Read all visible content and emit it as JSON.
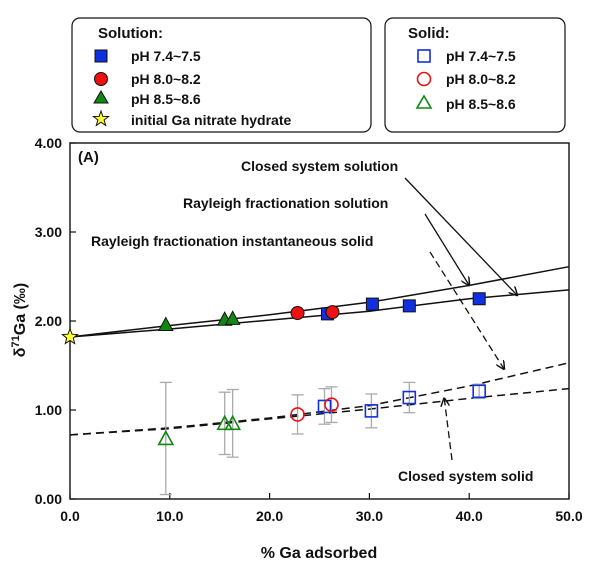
{
  "chart_data": {
    "type": "scatter",
    "panel_label": "(A)",
    "xlabel": "% Ga adsorbed",
    "ylabel_main": "δ",
    "ylabel_sup": "71",
    "ylabel_rest": "Ga (‰)",
    "xlim": [
      0,
      50
    ],
    "ylim": [
      0,
      4
    ],
    "xticks": [
      "0.0",
      "10.0",
      "20.0",
      "30.0",
      "40.0",
      "50.0"
    ],
    "yticks": [
      "0.00",
      "1.00",
      "2.00",
      "3.00",
      "4.00"
    ],
    "legend_solution": {
      "title": "Solution:",
      "entries": [
        "pH 7.4~7.5",
        "pH 8.0~8.2",
        "pH 8.5~8.6",
        "initial Ga nitrate hydrate"
      ]
    },
    "legend_solid": {
      "title": "Solid:",
      "entries": [
        "pH 7.4~7.5",
        "pH 8.0~8.2",
        "pH 8.5~8.6"
      ]
    },
    "colors": {
      "blue": "#1030e0",
      "red": "#ee1111",
      "green": "#118811",
      "star": "#ffff33",
      "errorbar": "#aaaaaa"
    },
    "series": [
      {
        "group": "solution",
        "marker": "square",
        "points": [
          [
            25.8,
            2.08
          ],
          [
            30.3,
            2.19
          ],
          [
            34.0,
            2.17
          ],
          [
            41.0,
            2.25
          ]
        ]
      },
      {
        "group": "solution",
        "marker": "circle",
        "points": [
          [
            22.8,
            2.09
          ],
          [
            26.3,
            2.1
          ]
        ]
      },
      {
        "group": "solution",
        "marker": "triangle",
        "points": [
          [
            9.6,
            1.96
          ],
          [
            15.5,
            2.02
          ],
          [
            16.3,
            2.03
          ]
        ]
      },
      {
        "group": "initial",
        "marker": "star",
        "points": [
          [
            0.0,
            1.82
          ]
        ]
      },
      {
        "group": "solid",
        "marker": "square",
        "points": [
          [
            25.5,
            1.04
          ],
          [
            30.2,
            0.99
          ],
          [
            34.0,
            1.14
          ],
          [
            41.0,
            1.21
          ]
        ],
        "errors": [
          0.2,
          0.19,
          0.17,
          0.08
        ]
      },
      {
        "group": "solid",
        "marker": "circle",
        "points": [
          [
            22.8,
            0.95
          ],
          [
            26.2,
            1.06
          ]
        ],
        "errors": [
          0.22,
          0.2
        ]
      },
      {
        "group": "solid",
        "marker": "triangle",
        "points": [
          [
            9.6,
            0.68
          ],
          [
            15.5,
            0.85
          ],
          [
            16.3,
            0.85
          ]
        ],
        "errors": [
          0.63,
          0.35,
          0.38
        ]
      }
    ],
    "curves": [
      {
        "name": "Closed system solution",
        "style": "solid",
        "x": [
          0,
          10,
          20,
          30,
          40,
          50
        ],
        "y": [
          1.82,
          1.91,
          2.01,
          2.11,
          2.25,
          2.35
        ]
      },
      {
        "name": "Rayleigh fractionation solution",
        "style": "solid",
        "x": [
          0,
          10,
          20,
          30,
          40,
          50
        ],
        "y": [
          1.82,
          1.95,
          2.07,
          2.21,
          2.4,
          2.61
        ]
      },
      {
        "name": "Rayleigh fractionation instantaneous solid",
        "style": "dashed",
        "x": [
          0,
          10,
          20,
          30,
          40,
          50
        ],
        "y": [
          0.72,
          0.8,
          0.91,
          1.05,
          1.27,
          1.53
        ]
      },
      {
        "name": "Closed system solid",
        "style": "dashed",
        "x": [
          0,
          10,
          20,
          30,
          40,
          50
        ],
        "y": [
          0.72,
          0.79,
          0.9,
          1.01,
          1.13,
          1.24
        ]
      }
    ],
    "annotations": [
      {
        "text": "Closed system solution",
        "arrow_to": [
          44.8,
          2.29
        ]
      },
      {
        "text": "Rayleigh fractionation solution",
        "arrow_to": [
          40.0,
          2.4
        ]
      },
      {
        "text": "Rayleigh fractionation instantaneous solid",
        "arrow_to": [
          43.5,
          1.46
        ]
      },
      {
        "text": "Closed system solid",
        "arrow_to": [
          37.5,
          1.13
        ]
      }
    ]
  }
}
